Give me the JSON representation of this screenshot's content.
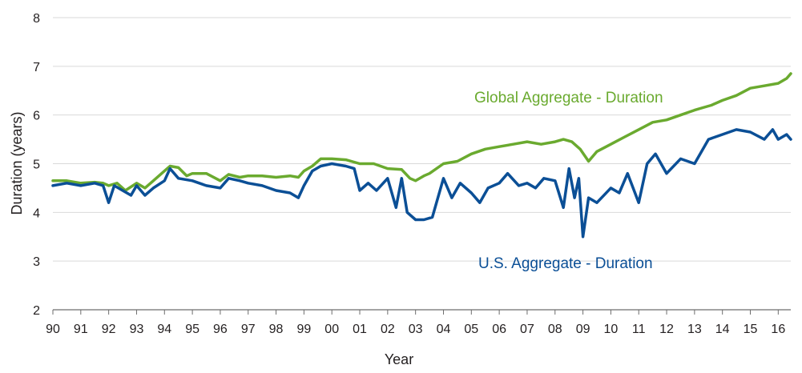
{
  "chart_data": {
    "type": "line",
    "title": "",
    "xlabel": "Year",
    "ylabel": "Duration (years)",
    "xlim": [
      1990.0,
      2016.45
    ],
    "ylim": [
      2,
      8
    ],
    "y_ticks": [
      2,
      3,
      4,
      5,
      6,
      7,
      8
    ],
    "x_ticks": [
      1990,
      1991,
      1992,
      1993,
      1994,
      1995,
      1996,
      1997,
      1998,
      1999,
      2000,
      2001,
      2002,
      2003,
      2004,
      2005,
      2006,
      2007,
      2008,
      2009,
      2010,
      2011,
      2012,
      2013,
      2014,
      2015,
      2016
    ],
    "x_tick_labels": [
      "90",
      "91",
      "92",
      "93",
      "94",
      "95",
      "96",
      "97",
      "98",
      "99",
      "00",
      "01",
      "02",
      "03",
      "04",
      "05",
      "06",
      "07",
      "08",
      "09",
      "10",
      "11",
      "12",
      "13",
      "14",
      "15",
      "16"
    ],
    "grid": "horizontal",
    "legend": "inline labels",
    "series": [
      {
        "name": "Global Aggregate - Duration",
        "color": "#6aaa2f",
        "x": [
          1990.0,
          1990.5,
          1991.0,
          1991.5,
          1991.8,
          1992.0,
          1992.3,
          1992.6,
          1993.0,
          1993.3,
          1993.6,
          1994.0,
          1994.2,
          1994.5,
          1994.8,
          1995.0,
          1995.5,
          1996.0,
          1996.3,
          1996.7,
          1997.0,
          1997.5,
          1998.0,
          1998.5,
          1998.8,
          1999.0,
          1999.3,
          1999.6,
          2000.0,
          2000.5,
          2001.0,
          2001.5,
          2002.0,
          2002.5,
          2002.8,
          2003.0,
          2003.3,
          2003.5,
          2004.0,
          2004.5,
          2005.0,
          2005.5,
          2006.0,
          2006.5,
          2007.0,
          2007.5,
          2008.0,
          2008.3,
          2008.6,
          2008.9,
          2009.2,
          2009.5,
          2010.0,
          2010.5,
          2011.0,
          2011.5,
          2012.0,
          2012.5,
          2013.0,
          2013.3,
          2013.6,
          2014.0,
          2014.5,
          2015.0,
          2015.5,
          2016.0,
          2016.3,
          2016.45
        ],
        "values": [
          4.65,
          4.65,
          4.6,
          4.62,
          4.6,
          4.55,
          4.6,
          4.45,
          4.6,
          4.5,
          4.65,
          4.85,
          4.95,
          4.92,
          4.75,
          4.8,
          4.8,
          4.65,
          4.78,
          4.72,
          4.75,
          4.75,
          4.72,
          4.75,
          4.72,
          4.85,
          4.95,
          5.1,
          5.1,
          5.08,
          5.0,
          5.0,
          4.9,
          4.88,
          4.7,
          4.65,
          4.75,
          4.8,
          5.0,
          5.05,
          5.2,
          5.3,
          5.35,
          5.4,
          5.45,
          5.4,
          5.45,
          5.5,
          5.45,
          5.3,
          5.05,
          5.25,
          5.4,
          5.55,
          5.7,
          5.85,
          5.9,
          6.0,
          6.1,
          6.15,
          6.2,
          6.3,
          6.4,
          6.55,
          6.6,
          6.65,
          6.75,
          6.85
        ]
      },
      {
        "name": "U.S. Aggregate - Duration",
        "color": "#0b4f96",
        "x": [
          1990.0,
          1990.5,
          1991.0,
          1991.5,
          1991.8,
          1992.0,
          1992.2,
          1992.5,
          1992.8,
          1993.0,
          1993.3,
          1993.6,
          1994.0,
          1994.2,
          1994.5,
          1995.0,
          1995.5,
          1996.0,
          1996.3,
          1996.7,
          1997.0,
          1997.5,
          1998.0,
          1998.5,
          1998.8,
          1999.0,
          1999.3,
          1999.6,
          2000.0,
          2000.5,
          2000.8,
          2001.0,
          2001.3,
          2001.6,
          2002.0,
          2002.3,
          2002.5,
          2002.7,
          2003.0,
          2003.3,
          2003.6,
          2004.0,
          2004.3,
          2004.6,
          2005.0,
          2005.3,
          2005.6,
          2006.0,
          2006.3,
          2006.7,
          2007.0,
          2007.3,
          2007.6,
          2008.0,
          2008.3,
          2008.5,
          2008.7,
          2008.85,
          2009.0,
          2009.2,
          2009.5,
          2010.0,
          2010.3,
          2010.6,
          2011.0,
          2011.3,
          2011.6,
          2012.0,
          2012.5,
          2013.0,
          2013.5,
          2014.0,
          2014.5,
          2015.0,
          2015.5,
          2015.8,
          2016.0,
          2016.3,
          2016.45
        ],
        "values": [
          4.55,
          4.6,
          4.55,
          4.6,
          4.55,
          4.2,
          4.55,
          4.45,
          4.35,
          4.55,
          4.35,
          4.5,
          4.65,
          4.9,
          4.7,
          4.65,
          4.55,
          4.5,
          4.7,
          4.65,
          4.6,
          4.55,
          4.45,
          4.4,
          4.3,
          4.55,
          4.85,
          4.95,
          5.0,
          4.95,
          4.9,
          4.45,
          4.6,
          4.45,
          4.7,
          4.1,
          4.7,
          4.0,
          3.85,
          3.85,
          3.9,
          4.7,
          4.3,
          4.6,
          4.4,
          4.2,
          4.5,
          4.6,
          4.8,
          4.55,
          4.6,
          4.5,
          4.7,
          4.65,
          4.1,
          4.9,
          4.3,
          4.7,
          3.5,
          4.3,
          4.2,
          4.5,
          4.4,
          4.8,
          4.2,
          5.0,
          5.2,
          4.8,
          5.1,
          5.0,
          5.5,
          5.6,
          5.7,
          5.65,
          5.5,
          5.7,
          5.5,
          5.6,
          5.5
        ]
      }
    ]
  },
  "labels": {
    "global": "Global Aggregate - Duration",
    "us": "U.S. Aggregate - Duration"
  },
  "colors": {
    "grid": "#d9d9d9",
    "axis": "#6d6d6d",
    "text": "#231f20"
  }
}
